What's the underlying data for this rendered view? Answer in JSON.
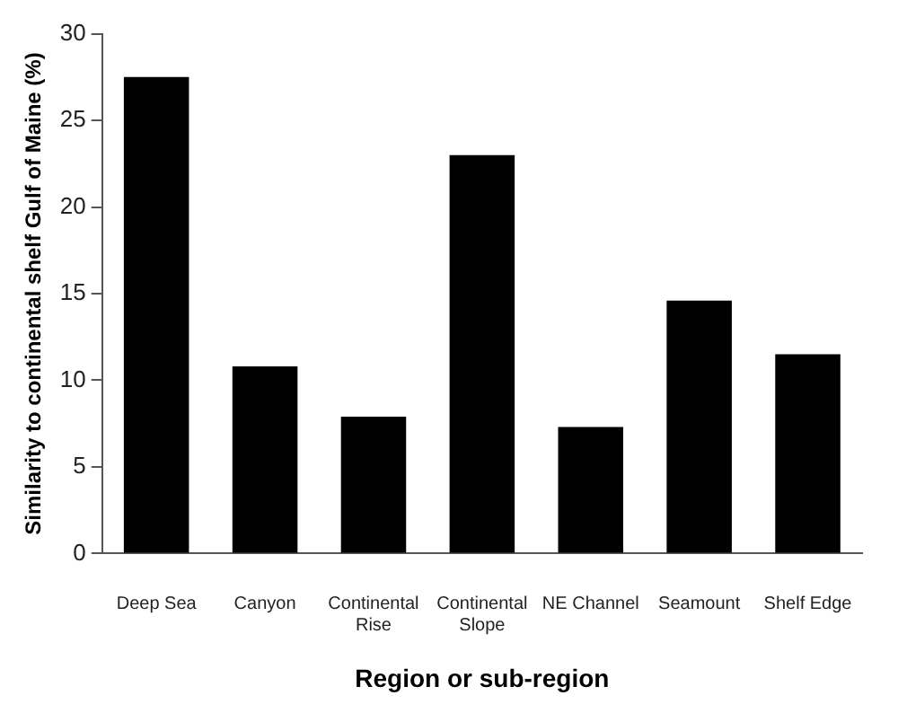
{
  "chart_data": {
    "type": "bar",
    "xlabel": "Region or sub-region",
    "ylabel": "Similarity to continental shelf Gulf of Maine (%)",
    "categories": [
      "Deep Sea",
      "Canyon",
      "Continental Rise",
      "Continental Slope",
      "NE Channel",
      "Seamount",
      "Shelf Edge"
    ],
    "values": [
      27.5,
      10.8,
      7.9,
      23.0,
      7.3,
      14.6,
      11.5
    ],
    "color": "#000000",
    "ylim": [
      0,
      30
    ],
    "yticks": [
      0,
      5,
      10,
      15,
      20,
      25,
      30
    ],
    "grid": false,
    "legend": false
  }
}
